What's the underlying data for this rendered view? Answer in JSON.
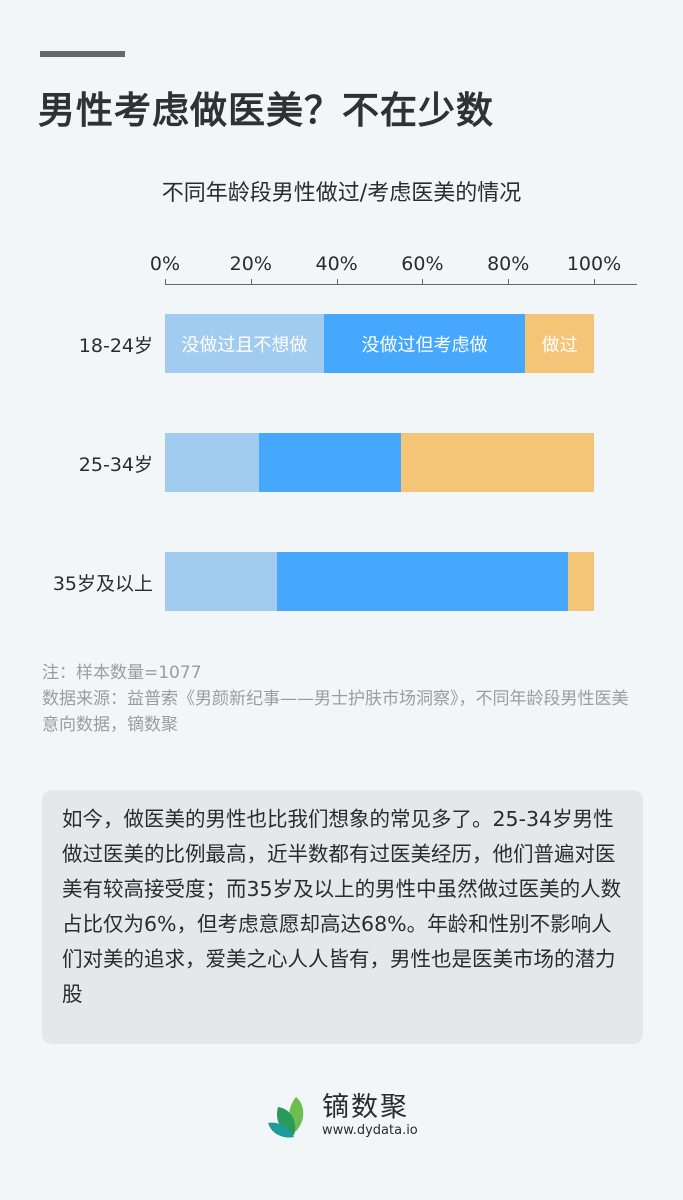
{
  "header": {
    "title": "男性考虑做医美？不在少数"
  },
  "chart_data": {
    "type": "bar",
    "orientation": "horizontal",
    "stacked": true,
    "title": "不同年龄段男性做过/考虑医美的情况",
    "xlabel": "",
    "ylabel": "",
    "xlim": [
      0,
      100
    ],
    "x_ticks": [
      "0%",
      "20%",
      "40%",
      "60%",
      "80%",
      "100%"
    ],
    "categories": [
      "18-24岁",
      "25-34岁",
      "35岁及以上"
    ],
    "series": [
      {
        "name": "没做过且不想做",
        "color": "#a2cbf0",
        "values": [
          37,
          22,
          26
        ]
      },
      {
        "name": "没做过但考虑做",
        "color": "#46a8fc",
        "values": [
          47,
          33,
          68
        ]
      },
      {
        "name": "做过",
        "color": "#f4c477",
        "values": [
          16,
          45,
          6
        ]
      }
    ],
    "legend": "inline labels on first bar",
    "grid": false
  },
  "notes": {
    "sample": "注：样本数量=1077",
    "source": "数据来源：益普索《男颜新纪事——男士护肤市场洞察》，不同年龄段男性医美意向数据，镝数聚"
  },
  "summary": {
    "text": "如今，做医美的男性也比我们想象的常见多了。25-34岁男性做过医美的比例最高，近半数都有过医美经历，他们普遍对医美有较高接受度；而35岁及以上的男性中虽然做过医美的人数占比仅为6%，但考虑意愿却高达68%。年龄和性别不影响人们对美的追求，爱美之心人人皆有，男性也是医美市场的潜力股"
  },
  "footer": {
    "brand": "镝数聚",
    "url": "www.dydata.io"
  }
}
